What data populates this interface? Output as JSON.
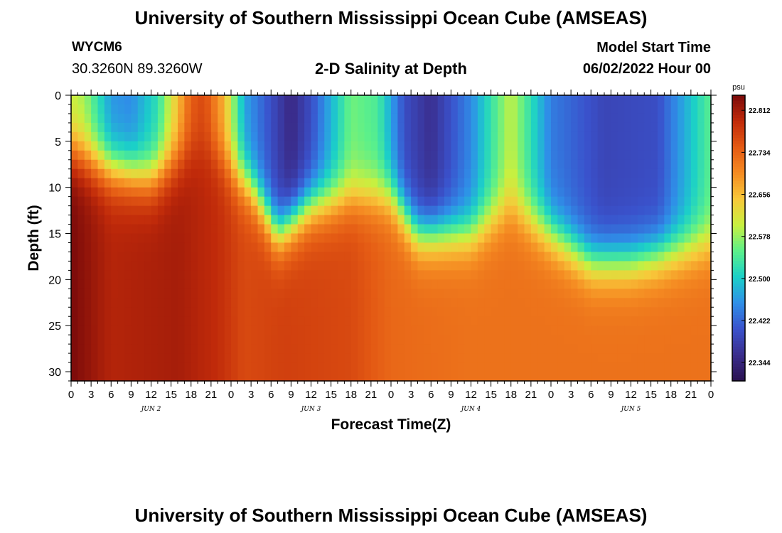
{
  "page": {
    "title": "University of Southern Mississippi Ocean Cube (AMSEAS)",
    "station": "WYCM6",
    "coordinates": "30.3260N  89.3260W",
    "subtitle": "2-D Salinity at Depth",
    "model_start_label": "Model Start Time",
    "model_start_value": "06/02/2022 Hour 00",
    "footer_title": "University of Southern Mississippi Ocean Cube (AMSEAS)"
  },
  "chart_data": {
    "type": "heatmap",
    "title": "2-D Salinity at Depth",
    "xlabel": "Forecast Time(Z)",
    "ylabel": "Depth (ft)",
    "x_range_hours": [
      0,
      96
    ],
    "y_range_ft": [
      0,
      31
    ],
    "y_ticks": [
      "0",
      "5",
      "10",
      "15",
      "20",
      "25",
      "30"
    ],
    "x_tick_labels": [
      "0",
      "3",
      "6",
      "9",
      "12",
      "15",
      "18",
      "21",
      "0",
      "3",
      "6",
      "9",
      "12",
      "15",
      "18",
      "21",
      "0",
      "3",
      "6",
      "9",
      "12",
      "15",
      "18",
      "21",
      "0",
      "3",
      "6",
      "9",
      "12",
      "15",
      "18",
      "21",
      "0"
    ],
    "day_labels": [
      "JUN 2",
      "JUN 3",
      "JUN 4",
      "JUN 5"
    ],
    "colorbar": {
      "unit": "psu",
      "labels": [
        "22.812",
        "22.734",
        "22.656",
        "22.578",
        "22.500",
        "22.422",
        "22.344"
      ],
      "min": 22.31,
      "max": 22.84
    },
    "colors": [
      "#2a1250",
      "#3a2d8c",
      "#3a52cc",
      "#2f8fe8",
      "#1bd0c8",
      "#5cf08a",
      "#c8f040",
      "#f8c83a",
      "#f58b22",
      "#e45a14",
      "#c02a0a",
      "#7a0a0a"
    ],
    "surface_layer_salinity": [
      {
        "hour": 0,
        "value": 22.6
      },
      {
        "hour": 2,
        "value": 22.58
      },
      {
        "hour": 6,
        "value": 22.46
      },
      {
        "hour": 9,
        "value": 22.45
      },
      {
        "hour": 13,
        "value": 22.52
      },
      {
        "hour": 18,
        "value": 22.74
      },
      {
        "hour": 20,
        "value": 22.76
      },
      {
        "hour": 23,
        "value": 22.66
      },
      {
        "hour": 26,
        "value": 22.47
      },
      {
        "hour": 30,
        "value": 22.4
      },
      {
        "hour": 33,
        "value": 22.35
      },
      {
        "hour": 36,
        "value": 22.4
      },
      {
        "hour": 42,
        "value": 22.56
      },
      {
        "hour": 46,
        "value": 22.54
      },
      {
        "hour": 50,
        "value": 22.4
      },
      {
        "hour": 54,
        "value": 22.36
      },
      {
        "hour": 60,
        "value": 22.45
      },
      {
        "hour": 66,
        "value": 22.6
      },
      {
        "hour": 72,
        "value": 22.44
      },
      {
        "hour": 80,
        "value": 22.39
      },
      {
        "hour": 88,
        "value": 22.4
      },
      {
        "hour": 96,
        "value": 22.55
      }
    ],
    "deep_layer_salinity": [
      {
        "hour": 0,
        "value": 22.84
      },
      {
        "hour": 6,
        "value": 22.8
      },
      {
        "hour": 16,
        "value": 22.81
      },
      {
        "hour": 22,
        "value": 22.79
      },
      {
        "hour": 26,
        "value": 22.76
      },
      {
        "hour": 32,
        "value": 22.77
      },
      {
        "hour": 42,
        "value": 22.76
      },
      {
        "hour": 48,
        "value": 22.73
      },
      {
        "hour": 60,
        "value": 22.72
      },
      {
        "hour": 96,
        "value": 22.72
      }
    ],
    "halocline_depth_ft": [
      {
        "hour": 0,
        "value": 6
      },
      {
        "hour": 6,
        "value": 8
      },
      {
        "hour": 12,
        "value": 9
      },
      {
        "hour": 18,
        "value": 6
      },
      {
        "hour": 21,
        "value": 6
      },
      {
        "hour": 27,
        "value": 10
      },
      {
        "hour": 31,
        "value": 15
      },
      {
        "hour": 36,
        "value": 12
      },
      {
        "hour": 42,
        "value": 11
      },
      {
        "hour": 48,
        "value": 11
      },
      {
        "hour": 52,
        "value": 15
      },
      {
        "hour": 60,
        "value": 15
      },
      {
        "hour": 66,
        "value": 12
      },
      {
        "hour": 72,
        "value": 15
      },
      {
        "hour": 78,
        "value": 18
      },
      {
        "hour": 84,
        "value": 18
      },
      {
        "hour": 90,
        "value": 17
      },
      {
        "hour": 96,
        "value": 16
      }
    ]
  }
}
